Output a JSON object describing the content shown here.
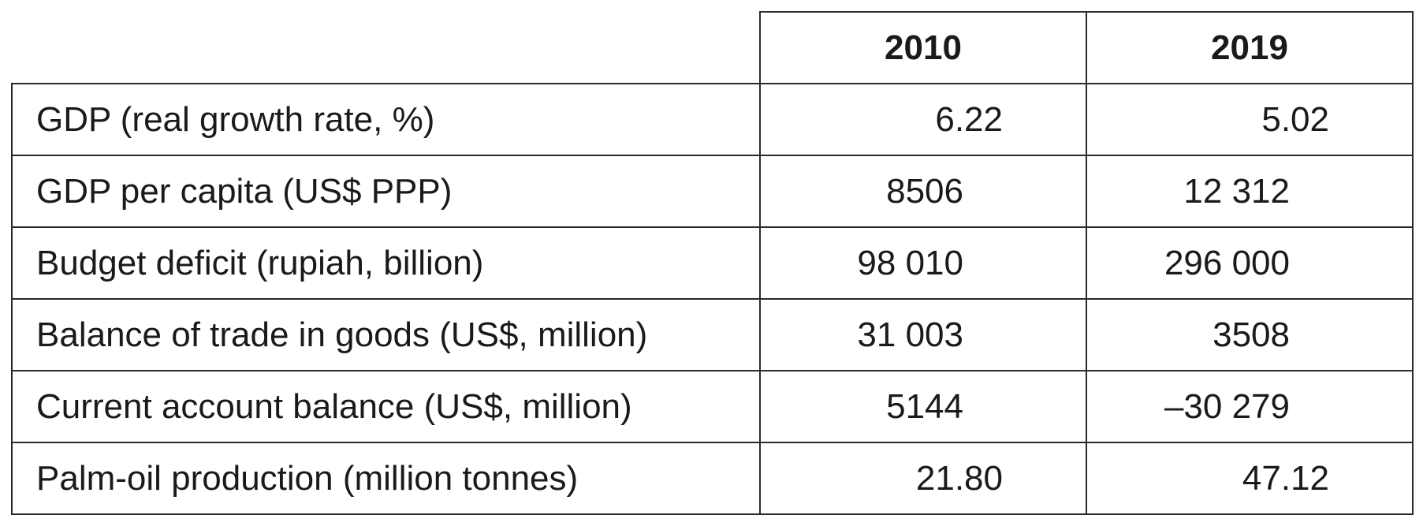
{
  "table": {
    "columns": [
      "2010",
      "2019"
    ],
    "rows": [
      {
        "label": "GDP (real growth rate, %)",
        "values": [
          "6.22",
          "5.02"
        ]
      },
      {
        "label": "GDP per capita (US$ PPP)",
        "values": [
          "8506",
          "12 312"
        ]
      },
      {
        "label": "Budget deficit (rupiah, billion)",
        "values": [
          "98 010",
          "296 000"
        ]
      },
      {
        "label": "Balance of trade in goods (US$, million)",
        "values": [
          "31 003",
          "3508"
        ]
      },
      {
        "label": "Current account balance (US$, million)",
        "values": [
          "5144",
          "–30 279"
        ]
      },
      {
        "label": "Palm-oil production (million tonnes)",
        "values": [
          "21.80",
          "47.12"
        ]
      }
    ]
  }
}
